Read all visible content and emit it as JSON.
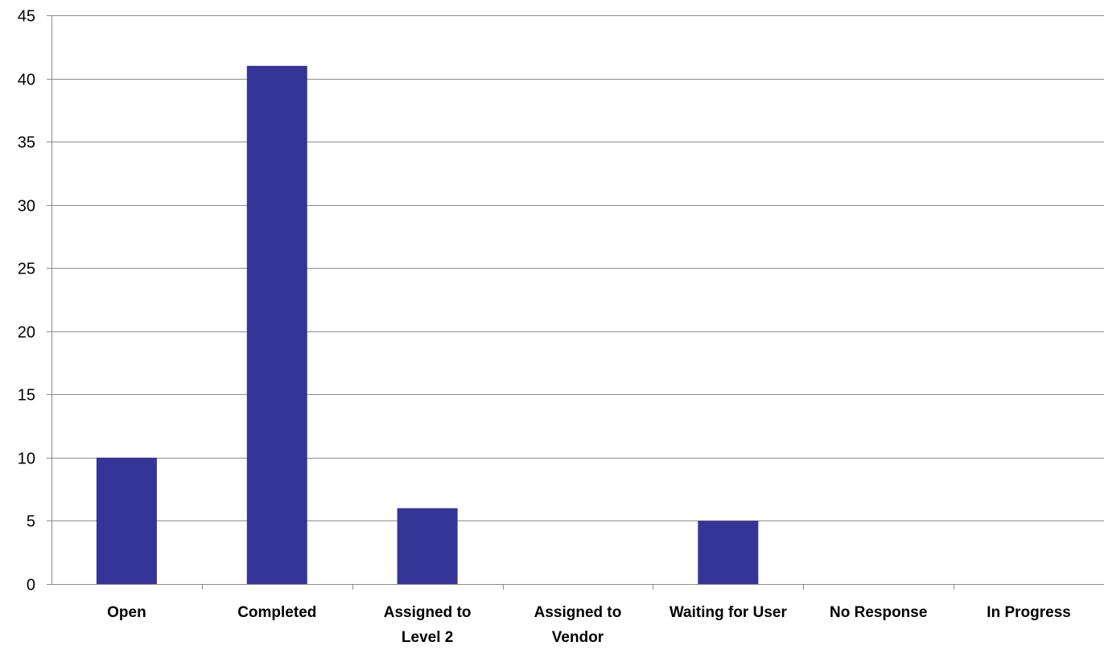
{
  "chart_data": {
    "type": "bar",
    "categories": [
      "Open",
      "Completed",
      "Assigned to Level 2",
      "Assigned to Vendor",
      "Waiting for User",
      "No Response",
      "In Progress"
    ],
    "category_label_lines": [
      [
        "Open"
      ],
      [
        "Completed"
      ],
      [
        "Assigned to",
        "Level 2"
      ],
      [
        "Assigned to",
        "Vendor"
      ],
      [
        "Waiting for User"
      ],
      [
        "No Response"
      ],
      [
        "In Progress"
      ]
    ],
    "values": [
      10,
      41,
      6,
      0,
      5,
      0,
      0
    ],
    "title": "",
    "xlabel": "",
    "ylabel": "",
    "ylim": [
      0,
      45
    ],
    "yticks": [
      0,
      5,
      10,
      15,
      20,
      25,
      30,
      35,
      40,
      45
    ],
    "grid": true,
    "legend": "none",
    "colors": {
      "bar": "#353598",
      "gridline": "#8c8c8c",
      "axis": "#8c8c8c"
    }
  }
}
